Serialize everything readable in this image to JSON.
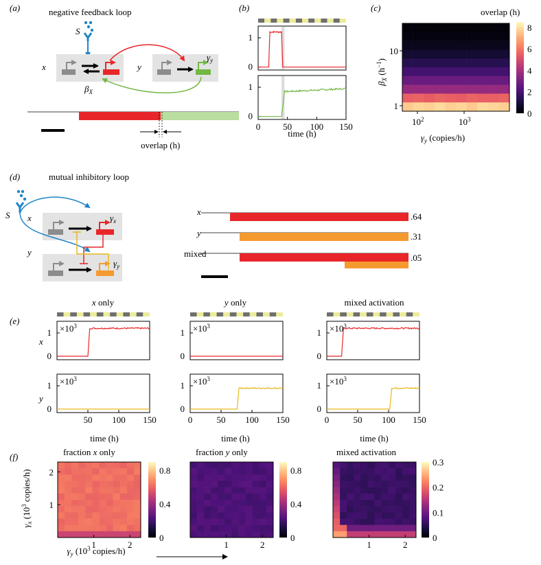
{
  "panels": {
    "a": {
      "label": "(a)",
      "title": "negative feedback loop",
      "signal": "S",
      "x": "x",
      "y": "y",
      "gamma_y": "γ",
      "gamma_y_sub": "y",
      "beta": "β",
      "beta_sub": "X",
      "overlap": "overlap (h)"
    },
    "b": {
      "label": "(b)",
      "xlabel": "time (h)"
    },
    "c": {
      "label": "(c)",
      "ylabel": "β",
      "ylabel_sub": "X",
      "ylabel_unit": " (h",
      "ylabel_exp": "−1",
      "ylabel_close": ")",
      "xlabel": "γ",
      "xlabel_sub": "y",
      "xlabel_unit": " (copies/h)",
      "cbar_title": "overlap (h)"
    },
    "d": {
      "label": "(d)",
      "title": "mutual inhibitory loop",
      "signal": "S",
      "x": "x",
      "y": "y",
      "gamma_x": "γ",
      "gamma_x_sub": "x",
      "gamma_y": "γ",
      "gamma_y_sub": "y",
      "bar_labels": [
        "x",
        "y",
        "mixed"
      ],
      "fractions": [
        ".64",
        ".31",
        ".05"
      ]
    },
    "e": {
      "label": "(e)",
      "titles": [
        "x only",
        "y only",
        "mixed activation"
      ],
      "titles_suffix": [
        "only",
        "only",
        ""
      ],
      "ylab_x": "x",
      "ylab_y": "y",
      "mult": "×10",
      "mult_exp": "3",
      "xlabel": "time (h)"
    },
    "f": {
      "label": "(f)",
      "titles": [
        "fraction ",
        "fraction ",
        "mixed activation"
      ],
      "title_vars": [
        "x",
        "y",
        ""
      ],
      "title_suffix": [
        " only",
        " only",
        ""
      ],
      "ylabel": "γ",
      "ylabel_sub": "x",
      "ylabel_unit": " (10",
      "ylabel_exp": "3",
      "ylabel_close": " copies/h)",
      "xlabel": "γ",
      "xlabel_sub": "y",
      "xlabel_unit": " (10",
      "xlabel_exp": "3",
      "xlabel_close": " copies/h)"
    }
  },
  "colors": {
    "x": "#e8262a",
    "y": "#f59a2f",
    "green": "#72b844",
    "light_green": "#b8dea0",
    "blue": "#1f86c6",
    "bar_grey": "#6f6f6f",
    "bar_yellow": "#ecec9a",
    "black": "#000000"
  },
  "chart_data": [
    {
      "id": "b-top",
      "type": "line",
      "series": [
        {
          "name": "x",
          "color": "#e8262a",
          "x": [
            0,
            18,
            20,
            40,
            42,
            150
          ],
          "y": [
            0,
            0,
            1.2,
            1.2,
            0,
            0
          ]
        }
      ],
      "xlim": [
        0,
        150
      ],
      "ylim": [
        -0.1,
        1.4
      ],
      "yticks": [
        0,
        1
      ]
    },
    {
      "id": "b-bottom",
      "type": "line",
      "series": [
        {
          "name": "y",
          "color": "#72b844",
          "x": [
            0,
            40,
            45,
            150
          ],
          "y": [
            0,
            0,
            0.85,
            0.95
          ]
        }
      ],
      "xlim": [
        0,
        150
      ],
      "ylim": [
        -0.1,
        1.4
      ],
      "yticks": [
        0,
        1
      ],
      "xticks": [
        0,
        50,
        100,
        150
      ],
      "xlabel": "time (h)"
    },
    {
      "id": "c",
      "type": "heatmap",
      "title": "overlap (h)",
      "xlabel": "γy (copies/h)",
      "ylabel": "βX (h−1)",
      "xticks": [
        "10^2",
        "10^3"
      ],
      "yticks": [
        "1",
        "10"
      ],
      "rows_top_to_bottom": [
        [
          0.1,
          0.1,
          0.1,
          0.1,
          0.1,
          0.1,
          0.1,
          0.1,
          0.1,
          0.1
        ],
        [
          0.2,
          0.2,
          0.2,
          0.2,
          0.2,
          0.2,
          0.2,
          0.2,
          0.2,
          0.2
        ],
        [
          0.4,
          0.4,
          0.4,
          0.4,
          0.4,
          0.4,
          0.4,
          0.4,
          0.4,
          0.4
        ],
        [
          0.8,
          0.8,
          0.8,
          0.8,
          0.8,
          0.8,
          0.8,
          0.8,
          0.8,
          0.8
        ],
        [
          1.3,
          1.3,
          1.3,
          1.3,
          1.3,
          1.3,
          1.3,
          1.3,
          1.3,
          1.3
        ],
        [
          1.9,
          1.9,
          1.9,
          1.9,
          1.9,
          1.9,
          1.9,
          1.9,
          1.9,
          1.9
        ],
        [
          2.7,
          2.7,
          2.7,
          2.7,
          2.7,
          2.7,
          2.7,
          2.7,
          2.7,
          2.7
        ],
        [
          3.6,
          3.6,
          3.6,
          3.6,
          3.6,
          3.6,
          3.6,
          3.6,
          3.6,
          3.6
        ],
        [
          5.5,
          5.6,
          5.4,
          5.6,
          5.5,
          5.4,
          5.6,
          5.5,
          5.5,
          5.6
        ],
        [
          7.6,
          7.8,
          7.7,
          7.9,
          7.7,
          7.8,
          7.6,
          7.9,
          7.8,
          7.7
        ]
      ],
      "colorbar": {
        "min": 0,
        "max": 8.5,
        "ticks": [
          0,
          2,
          4,
          6,
          8
        ]
      }
    },
    {
      "id": "d-bars",
      "type": "bar",
      "categories": [
        "x",
        "y",
        "mixed"
      ],
      "values": [
        0.64,
        0.31,
        0.05
      ]
    },
    {
      "id": "e-x-only-x",
      "type": "line",
      "series": [
        {
          "name": "x",
          "color": "#e8262a",
          "x": [
            0,
            50,
            53,
            150
          ],
          "y": [
            0,
            0,
            1.2,
            1.2
          ]
        }
      ],
      "xlim": [
        0,
        150
      ],
      "ylim": [
        -0.15,
        1.5
      ],
      "yticks": [
        0,
        1
      ]
    },
    {
      "id": "e-y-only-x",
      "type": "line",
      "series": [
        {
          "name": "x",
          "color": "#e8262a",
          "x": [
            0,
            150
          ],
          "y": [
            0,
            0
          ]
        }
      ],
      "xlim": [
        0,
        150
      ],
      "ylim": [
        -0.15,
        1.5
      ],
      "yticks": [
        0,
        1
      ]
    },
    {
      "id": "e-mixed-x",
      "type": "line",
      "series": [
        {
          "name": "x",
          "color": "#e8262a",
          "x": [
            0,
            24,
            27,
            150
          ],
          "y": [
            0,
            0,
            1.2,
            1.2
          ]
        }
      ],
      "xlim": [
        0,
        150
      ],
      "ylim": [
        -0.15,
        1.5
      ],
      "yticks": [
        0,
        1
      ]
    },
    {
      "id": "e-x-only-y",
      "type": "line",
      "series": [
        {
          "name": "y",
          "color": "#e8b81f",
          "x": [
            0,
            150
          ],
          "y": [
            0,
            0
          ]
        }
      ],
      "xlim": [
        0,
        150
      ],
      "ylim": [
        -0.15,
        1.5
      ],
      "yticks": [
        0,
        1
      ],
      "xticks": [
        50,
        100,
        150
      ],
      "xlabel": "time (h)"
    },
    {
      "id": "e-y-only-y",
      "type": "line",
      "series": [
        {
          "name": "y",
          "color": "#e8b81f",
          "x": [
            0,
            76,
            79,
            150
          ],
          "y": [
            0,
            0,
            0.9,
            0.9
          ]
        }
      ],
      "xlim": [
        0,
        150
      ],
      "ylim": [
        -0.15,
        1.5
      ],
      "yticks": [
        0,
        1
      ],
      "xticks": [
        0,
        50,
        100,
        150
      ],
      "xlabel": "time (h)"
    },
    {
      "id": "e-mixed-y",
      "type": "line",
      "series": [
        {
          "name": "y",
          "color": "#e8b81f",
          "x": [
            0,
            102,
            105,
            150
          ],
          "y": [
            0,
            0,
            0.9,
            0.9
          ]
        }
      ],
      "xlim": [
        0,
        150
      ],
      "ylim": [
        -0.15,
        1.5
      ],
      "yticks": [
        0,
        1
      ],
      "xticks": [
        0,
        50,
        100,
        150
      ],
      "xlabel": "time (h)"
    },
    {
      "id": "f-x-only",
      "type": "heatmap",
      "title": "fraction x only",
      "xlabel": "γy (10^3 copies/h)",
      "ylabel": "γx (10^3 copies/h)",
      "xticks": [
        1,
        2
      ],
      "yticks": [
        1,
        2
      ],
      "colorbar": {
        "min": 0,
        "max": 0.9,
        "ticks": [
          0,
          0.4,
          0.8
        ]
      },
      "mean": 0.62
    },
    {
      "id": "f-y-only",
      "type": "heatmap",
      "title": "fraction y only",
      "xticks": [
        1,
        2
      ],
      "colorbar": {
        "min": 0,
        "max": 0.9,
        "ticks": [
          0,
          0.4,
          0.8
        ]
      },
      "mean": 0.22
    },
    {
      "id": "f-mixed",
      "type": "heatmap",
      "title": "mixed activation",
      "xticks": [
        1,
        2
      ],
      "colorbar": {
        "min": 0,
        "max": 0.3,
        "ticks": [
          0,
          0.1,
          0.2,
          0.3
        ]
      },
      "mean": 0.06
    }
  ]
}
